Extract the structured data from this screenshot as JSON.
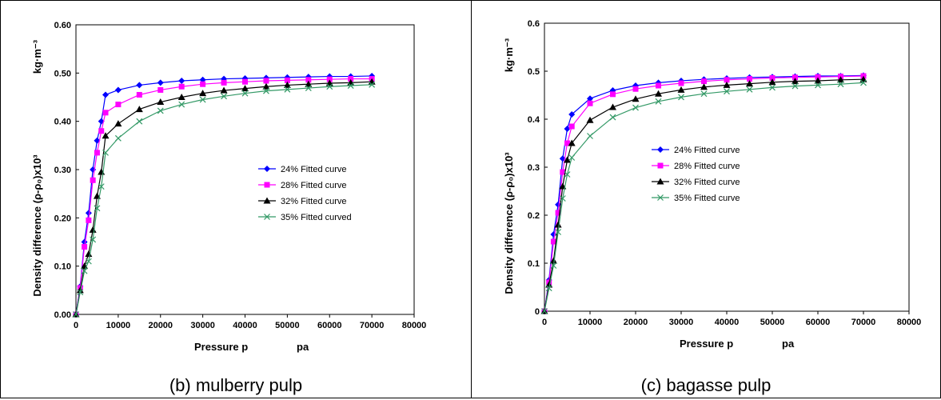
{
  "chart_data": [
    {
      "type": "line",
      "caption": "(b) mulberry pulp",
      "xlabel": "Pressure p",
      "xunit": "pa",
      "ylabel": "Density difference (ρ-ρ₀)x10³",
      "yunit": "kg·m⁻³",
      "xlim": [
        0,
        80000
      ],
      "ylim": [
        0,
        0.6
      ],
      "xticks": [
        "0",
        "10000",
        "20000",
        "30000",
        "40000",
        "50000",
        "60000",
        "70000",
        "80000"
      ],
      "yticks": [
        "0.00",
        "0.10",
        "0.20",
        "0.30",
        "0.40",
        "0.50",
        "0.60"
      ],
      "legend_position": "center-right",
      "grid": false,
      "x": [
        0,
        1000,
        2000,
        3000,
        4000,
        5000,
        6000,
        7000,
        10000,
        15000,
        20000,
        25000,
        30000,
        35000,
        40000,
        45000,
        50000,
        55000,
        60000,
        65000,
        70000
      ],
      "series": [
        {
          "name": "24% Fitted curve",
          "color": "#0000ff",
          "marker": "diamond",
          "values": [
            0,
            0.058,
            0.15,
            0.21,
            0.3,
            0.36,
            0.4,
            0.455,
            0.465,
            0.475,
            0.48,
            0.484,
            0.486,
            0.488,
            0.489,
            0.49,
            0.491,
            0.492,
            0.493,
            0.493,
            0.494
          ]
        },
        {
          "name": "28% Fitted curve",
          "color": "#ff00ff",
          "marker": "square",
          "values": [
            0,
            0.055,
            0.14,
            0.195,
            0.278,
            0.335,
            0.38,
            0.418,
            0.435,
            0.455,
            0.465,
            0.472,
            0.477,
            0.48,
            0.482,
            0.484,
            0.485,
            0.486,
            0.487,
            0.488,
            0.488
          ]
        },
        {
          "name": "32% Fitted curve",
          "color": "#000000",
          "marker": "triangle",
          "values": [
            0,
            0.05,
            0.1,
            0.125,
            0.175,
            0.245,
            0.295,
            0.37,
            0.395,
            0.425,
            0.44,
            0.45,
            0.458,
            0.464,
            0.468,
            0.472,
            0.475,
            0.477,
            0.479,
            0.48,
            0.482
          ]
        },
        {
          "name": "35% Fitted curved",
          "color": "#339966",
          "marker": "x",
          "values": [
            0,
            0.046,
            0.09,
            0.11,
            0.155,
            0.22,
            0.265,
            0.335,
            0.365,
            0.4,
            0.422,
            0.435,
            0.445,
            0.452,
            0.458,
            0.463,
            0.466,
            0.469,
            0.472,
            0.474,
            0.476
          ]
        }
      ]
    },
    {
      "type": "line",
      "caption": "(c) bagasse pulp",
      "xlabel": "Pressure p",
      "xunit": "pa",
      "ylabel": "Density difference (ρ-ρ₀)x10³",
      "yunit": "kg·m⁻³",
      "xlim": [
        0,
        80000
      ],
      "ylim": [
        0,
        0.6
      ],
      "xticks": [
        "0",
        "10000",
        "20000",
        "30000",
        "40000",
        "50000",
        "60000",
        "70000",
        "80000"
      ],
      "yticks": [
        "0",
        "0.1",
        "0.2",
        "0.3",
        "0.4",
        "0.5",
        "0.6"
      ],
      "legend_position": "center-right",
      "grid": false,
      "x": [
        0,
        1000,
        2000,
        3000,
        4000,
        5000,
        6000,
        10000,
        15000,
        20000,
        25000,
        30000,
        35000,
        40000,
        45000,
        50000,
        55000,
        60000,
        65000,
        70000
      ],
      "series": [
        {
          "name": "24% Fitted curve",
          "color": "#0000ff",
          "marker": "diamond",
          "values": [
            0,
            0.065,
            0.16,
            0.222,
            0.318,
            0.38,
            0.41,
            0.443,
            0.46,
            0.47,
            0.476,
            0.48,
            0.483,
            0.485,
            0.487,
            0.488,
            0.489,
            0.49,
            0.49,
            0.491
          ]
        },
        {
          "name": "28% Fitted curve",
          "color": "#ff00ff",
          "marker": "square",
          "values": [
            0,
            0.06,
            0.145,
            0.205,
            0.29,
            0.35,
            0.385,
            0.433,
            0.452,
            0.463,
            0.47,
            0.475,
            0.479,
            0.482,
            0.484,
            0.486,
            0.487,
            0.488,
            0.489,
            0.49
          ]
        },
        {
          "name": "32% Fitted curve",
          "color": "#000000",
          "marker": "triangle",
          "values": [
            0,
            0.055,
            0.105,
            0.18,
            0.26,
            0.315,
            0.35,
            0.398,
            0.425,
            0.442,
            0.453,
            0.461,
            0.467,
            0.471,
            0.474,
            0.477,
            0.479,
            0.48,
            0.482,
            0.483
          ]
        },
        {
          "name": "35% Fitted curve",
          "color": "#339966",
          "marker": "x",
          "values": [
            0,
            0.048,
            0.095,
            0.165,
            0.235,
            0.285,
            0.32,
            0.365,
            0.404,
            0.424,
            0.437,
            0.446,
            0.453,
            0.458,
            0.462,
            0.466,
            0.469,
            0.471,
            0.473,
            0.476
          ]
        }
      ]
    }
  ]
}
